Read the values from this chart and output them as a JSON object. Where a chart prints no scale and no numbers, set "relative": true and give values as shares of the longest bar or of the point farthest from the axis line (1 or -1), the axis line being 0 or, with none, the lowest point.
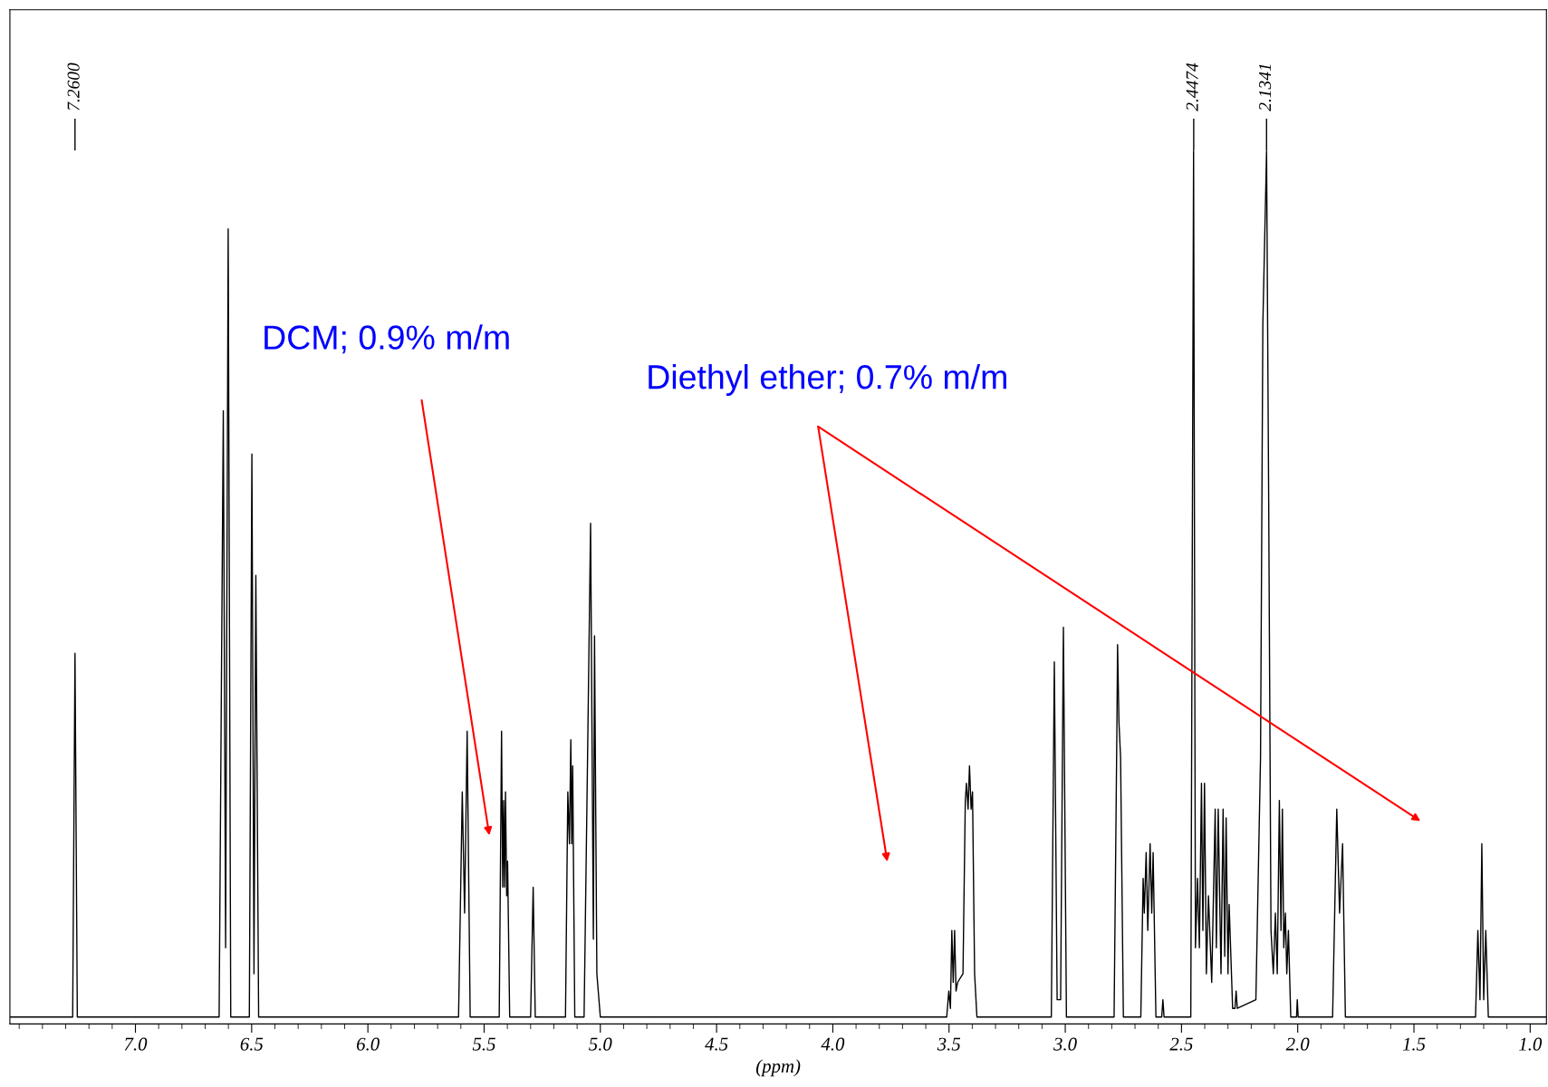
{
  "chart_data": {
    "type": "line",
    "relative": true,
    "xlabel": "(ppm)",
    "xlim": [
      7.54,
      0.93
    ],
    "xticks": [
      {
        "value": 7,
        "label": "7.0"
      },
      6.5,
      {
        "value": 6,
        "label": "6.0"
      },
      5.5,
      {
        "value": 5,
        "label": "5.0"
      },
      4.5,
      {
        "value": 4,
        "label": "4.0"
      },
      3.5,
      {
        "value": 3,
        "label": "3.0"
      },
      2.5,
      {
        "value": 2,
        "label": "2.0"
      },
      1.5,
      {
        "value": 1,
        "label": "1.0"
      }
    ],
    "grid": false,
    "legend": false,
    "tick_labels": "x",
    "series": [
      {
        "color": "#000000",
        "x": [
          7.54,
          7.27,
          7.26,
          7.25,
          6.64,
          6.622,
          6.612,
          6.601,
          6.59,
          6.51,
          6.499,
          6.49,
          6.482,
          6.47,
          5.61,
          5.594,
          5.584,
          5.573,
          5.56,
          5.435,
          5.425,
          5.42,
          5.416,
          5.412,
          5.408,
          5.403,
          5.399,
          5.39,
          5.3,
          5.289,
          5.28,
          5.15,
          5.14,
          5.133,
          5.127,
          5.123,
          5.119,
          5.11,
          5.07,
          5.055,
          5.042,
          5.03,
          5.025,
          5.015,
          5.0,
          3.51,
          3.501,
          3.494,
          3.488,
          3.482,
          3.476,
          3.47,
          3.463,
          3.44,
          3.43,
          3.425,
          3.418,
          3.412,
          3.405,
          3.399,
          3.39,
          3.38,
          3.06,
          3.047,
          3.035,
          3.02,
          3.008,
          2.995,
          2.79,
          2.778,
          2.775,
          2.769,
          2.762,
          2.75,
          2.675,
          2.665,
          2.66,
          2.652,
          2.645,
          2.635,
          2.628,
          2.622,
          2.61,
          2.585,
          2.58,
          2.575,
          2.46,
          2.448,
          2.44,
          2.431,
          2.423,
          2.414,
          2.408,
          2.401,
          2.393,
          2.384,
          2.37,
          2.355,
          2.35,
          2.342,
          2.33,
          2.321,
          2.314,
          2.308,
          2.3,
          2.295,
          2.28,
          2.27,
          2.265,
          2.26,
          2.18,
          2.16,
          2.15,
          2.134,
          2.125,
          2.115,
          2.105,
          2.096,
          2.088,
          2.079,
          2.072,
          2.066,
          2.06,
          2.053,
          2.047,
          2.04,
          2.03,
          2.005,
          2.002,
          1.998,
          1.85,
          1.832,
          1.82,
          1.807,
          1.795,
          1.235,
          1.225,
          1.216,
          1.208,
          1.2,
          1.191,
          1.18,
          0.93
        ],
        "values": [
          0,
          0,
          0.42,
          0,
          0,
          0.7,
          0.08,
          0.91,
          0,
          0,
          0.65,
          0.05,
          0.51,
          0,
          0,
          0.26,
          0.12,
          0.33,
          0,
          0,
          0.33,
          0.15,
          0.25,
          0.15,
          0.26,
          0.14,
          0.18,
          0,
          0,
          0.15,
          0,
          0,
          0.26,
          0.2,
          0.32,
          0.2,
          0.29,
          0,
          0,
          0.3,
          0.57,
          0.09,
          0.44,
          0.05,
          0,
          0,
          0.03,
          0.01,
          0.1,
          0.04,
          0.1,
          0.03,
          0.04,
          0.05,
          0.25,
          0.27,
          0.24,
          0.29,
          0.24,
          0.26,
          0.05,
          0,
          0,
          0.41,
          0.02,
          0.02,
          0.45,
          0,
          0,
          0.33,
          0.43,
          0.34,
          0.3,
          0,
          0,
          0.16,
          0.12,
          0.19,
          0.1,
          0.2,
          0.12,
          0.19,
          0,
          0,
          0.02,
          0,
          0,
          1.0,
          0.08,
          0.16,
          0.08,
          0.27,
          0.1,
          0.27,
          0.05,
          0.14,
          0.04,
          0.24,
          0.08,
          0.24,
          0.05,
          0.24,
          0.07,
          0.23,
          0.05,
          0.13,
          0.01,
          0.01,
          0.03,
          0.01,
          0.02,
          0.3,
          0.8,
          1.0,
          0.6,
          0.1,
          0.05,
          0.12,
          0.05,
          0.25,
          0.1,
          0.24,
          0.08,
          0.12,
          0.05,
          0.1,
          0,
          0,
          0.02,
          0,
          0,
          0.24,
          0.12,
          0.2,
          0,
          0,
          0.1,
          0.02,
          0.2,
          0.02,
          0.1,
          0,
          0
        ]
      }
    ],
    "annotations": [
      {
        "text": "7.2600",
        "x": 7.26
      },
      {
        "text": "2.4474",
        "x": 2.4474
      },
      {
        "text": "2.1341",
        "x": 2.1341
      },
      "DCM; 0.9% m/m",
      "Diethyl ether; 0.7% m/m"
    ]
  }
}
